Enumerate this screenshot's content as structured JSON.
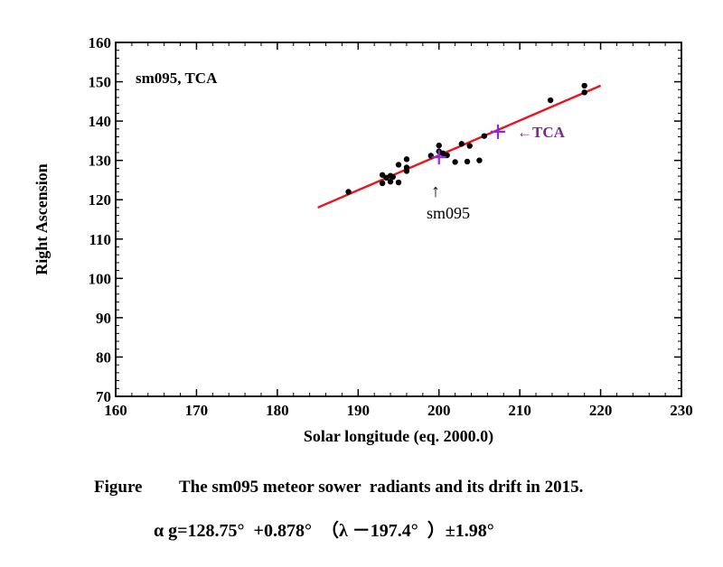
{
  "chart_data": {
    "type": "scatter",
    "title": "sm095, TCA",
    "xlabel": "Solar longitude (eq. 2000.0)",
    "ylabel": "Right Ascension",
    "xlim": [
      160,
      230
    ],
    "ylim": [
      70,
      160
    ],
    "xticks": [
      160,
      170,
      180,
      190,
      200,
      210,
      220,
      230
    ],
    "yticks": [
      70,
      80,
      90,
      100,
      110,
      120,
      130,
      140,
      150,
      160
    ],
    "grid": false,
    "points": [
      {
        "x": 188.8,
        "y": 122
      },
      {
        "x": 193.0,
        "y": 126.3
      },
      {
        "x": 193.0,
        "y": 124.2
      },
      {
        "x": 193.5,
        "y": 125.6
      },
      {
        "x": 194.0,
        "y": 126.1
      },
      {
        "x": 194.0,
        "y": 124.6
      },
      {
        "x": 194.3,
        "y": 125.8
      },
      {
        "x": 195.0,
        "y": 124.4
      },
      {
        "x": 195.0,
        "y": 128.9
      },
      {
        "x": 196.0,
        "y": 130.3
      },
      {
        "x": 196.0,
        "y": 128.2
      },
      {
        "x": 196.0,
        "y": 127.3
      },
      {
        "x": 199.0,
        "y": 131.2
      },
      {
        "x": 200.0,
        "y": 133.8
      },
      {
        "x": 200.0,
        "y": 132.3
      },
      {
        "x": 200.5,
        "y": 131.8
      },
      {
        "x": 201.0,
        "y": 131.3
      },
      {
        "x": 202.0,
        "y": 129.6
      },
      {
        "x": 202.8,
        "y": 134.2
      },
      {
        "x": 203.5,
        "y": 129.7
      },
      {
        "x": 203.8,
        "y": 133.7
      },
      {
        "x": 205.0,
        "y": 130.0
      },
      {
        "x": 205.6,
        "y": 136.2
      },
      {
        "x": 213.8,
        "y": 145.3
      },
      {
        "x": 218.0,
        "y": 149.0
      },
      {
        "x": 218.0,
        "y": 147.3
      }
    ],
    "fit_line": {
      "x": [
        185,
        220
      ],
      "y": [
        118.0,
        149.0
      ],
      "color": "#e8141e"
    },
    "markers": [
      {
        "name": "sm095",
        "x": 200.0,
        "y": 130.8,
        "color": "#8a2be2"
      },
      {
        "name": "TCA",
        "x": 207.3,
        "y": 137.3,
        "color": "#8a2be2"
      }
    ],
    "annotations": {
      "sm095_arrow": "↑",
      "sm095_label": "sm095",
      "tca_label": "←TCA"
    },
    "colors": {
      "points": "#000000",
      "tca_label": "#7b2a8c"
    }
  },
  "caption": {
    "label": "Figure",
    "text": "The sm095 meteor sower  radiants and its drift in 2015."
  },
  "formula": "α g=128.75°  +0.878°  （λ －197.4°  ）±1.98°"
}
